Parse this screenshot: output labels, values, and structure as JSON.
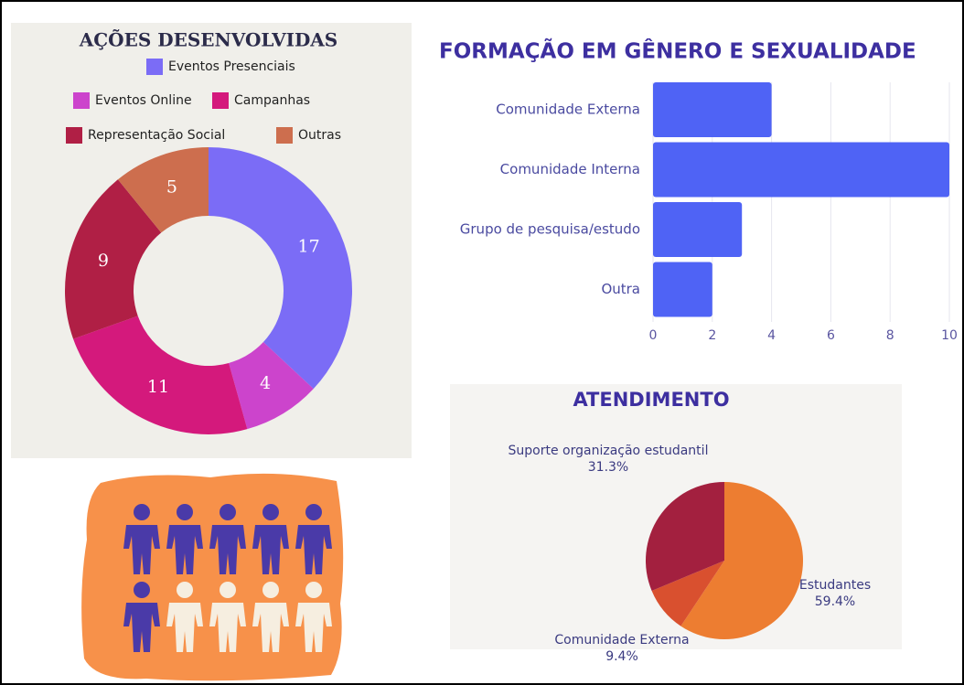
{
  "chart_data": [
    {
      "type": "donut",
      "title": "AÇÕES DESENVOLVIDAS",
      "categories": [
        "Eventos Presenciais",
        "Eventos Online",
        "Campanhas",
        "Representação Social",
        "Outras"
      ],
      "values": [
        17,
        4,
        11,
        9,
        5
      ],
      "colors": [
        "#7b6cf6",
        "#cc44cc",
        "#d4197c",
        "#b01f45",
        "#cd6e4e"
      ]
    },
    {
      "type": "hbar",
      "title": "FORMAÇÃO EM GÊNERO E SEXUALIDADE",
      "categories": [
        "Comunidade Externa",
        "Comunidade Interna",
        "Grupo de pesquisa/estudo",
        "Outra"
      ],
      "values": [
        4,
        10,
        3,
        2
      ],
      "color": "#4f63f5",
      "xlim": [
        0,
        10
      ],
      "xticks": [
        0,
        2,
        4,
        6,
        8,
        10
      ],
      "grid": true
    },
    {
      "type": "pie",
      "title": "ATENDIMENTO",
      "categories": [
        "Estudantes",
        "Comunidade Externa",
        "Suporte organização estudantil"
      ],
      "values": [
        59.4,
        9.4,
        31.3
      ],
      "value_labels": [
        "59.4%",
        "9.4%",
        "31.3%"
      ],
      "colors": [
        "#ed7d31",
        "#d9502f",
        "#a3203f"
      ]
    }
  ]
}
